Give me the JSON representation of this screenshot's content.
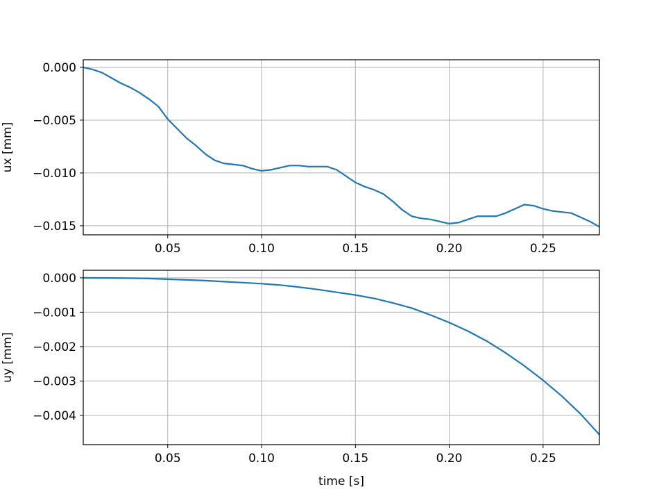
{
  "chart_data": [
    {
      "type": "line",
      "ylabel": "ux [mm]",
      "color": "#1f77b4",
      "grid": true,
      "x": [
        0.005,
        0.01,
        0.015,
        0.02,
        0.025,
        0.03,
        0.035,
        0.04,
        0.045,
        0.05,
        0.055,
        0.06,
        0.065,
        0.07,
        0.075,
        0.08,
        0.085,
        0.09,
        0.095,
        0.1,
        0.105,
        0.11,
        0.115,
        0.12,
        0.125,
        0.13,
        0.135,
        0.14,
        0.145,
        0.15,
        0.155,
        0.16,
        0.165,
        0.17,
        0.175,
        0.18,
        0.185,
        0.19,
        0.195,
        0.2,
        0.205,
        0.21,
        0.215,
        0.22,
        0.225,
        0.23,
        0.235,
        0.24,
        0.245,
        0.25,
        0.255,
        0.26,
        0.265,
        0.27,
        0.275,
        0.28
      ],
      "values": [
        0,
        -0.0002,
        -0.0005,
        -0.001,
        -0.0015,
        -0.0019,
        -0.0024,
        -0.003,
        -0.0037,
        -0.0049,
        -0.0058,
        -0.0067,
        -0.0074,
        -0.0082,
        -0.0088,
        -0.0091,
        -0.0092,
        -0.0093,
        -0.0096,
        -0.0098,
        -0.0097,
        -0.0095,
        -0.0093,
        -0.0093,
        -0.0094,
        -0.0094,
        -0.0094,
        -0.0097,
        -0.0103,
        -0.0109,
        -0.0113,
        -0.0116,
        -0.012,
        -0.0127,
        -0.0135,
        -0.0141,
        -0.0143,
        -0.0144,
        -0.0146,
        -0.0148,
        -0.0147,
        -0.0144,
        -0.0141,
        -0.0141,
        -0.0141,
        -0.0138,
        -0.0134,
        -0.013,
        -0.0131,
        -0.0134,
        -0.0136,
        -0.0137,
        -0.0138,
        -0.0142,
        -0.0146,
        -0.0151
      ],
      "xlim": [
        0.005,
        0.28
      ],
      "xticks": [
        {
          "value": 0.05,
          "label": "0.05"
        },
        {
          "value": 0.1,
          "label": "0.10"
        },
        {
          "value": 0.15,
          "label": "0.15"
        },
        {
          "value": 0.2,
          "label": "0.20"
        },
        {
          "value": 0.25,
          "label": "0.25"
        }
      ],
      "ylim": [
        -0.01586,
        0.00072
      ],
      "yticks": [
        {
          "value": 0,
          "label": "0.000"
        },
        {
          "value": -0.005,
          "label": "−0.005"
        },
        {
          "value": -0.01,
          "label": "−0.010"
        },
        {
          "value": -0.015,
          "label": "−0.015"
        }
      ]
    },
    {
      "type": "line",
      "ylabel": "uy [mm]",
      "xlabel": "time [s]",
      "color": "#1f77b4",
      "grid": true,
      "x": [
        0.005,
        0.01,
        0.02,
        0.03,
        0.04,
        0.05,
        0.06,
        0.07,
        0.08,
        0.09,
        0.1,
        0.11,
        0.12,
        0.13,
        0.14,
        0.15,
        0.16,
        0.17,
        0.18,
        0.19,
        0.2,
        0.21,
        0.22,
        0.23,
        0.24,
        0.25,
        0.26,
        0.27,
        0.28
      ],
      "values": [
        0,
        -2e-06,
        -5e-06,
        -1e-05,
        -2e-05,
        -4e-05,
        -6e-05,
        -8e-05,
        -0.00011,
        -0.00014,
        -0.00017,
        -0.00021,
        -0.00027,
        -0.00034,
        -0.00042,
        -0.0005,
        -0.0006,
        -0.00073,
        -0.00088,
        -0.00108,
        -0.0013,
        -0.00155,
        -0.00184,
        -0.00218,
        -0.00256,
        -0.00298,
        -0.00344,
        -0.00396,
        -0.00456
      ],
      "xlim": [
        0.005,
        0.28
      ],
      "xticks": [
        {
          "value": 0.05,
          "label": "0.05"
        },
        {
          "value": 0.1,
          "label": "0.10"
        },
        {
          "value": 0.15,
          "label": "0.15"
        },
        {
          "value": 0.2,
          "label": "0.20"
        },
        {
          "value": 0.25,
          "label": "0.25"
        }
      ],
      "ylim": [
        -0.00485,
        0.00022
      ],
      "yticks": [
        {
          "value": 0,
          "label": "0.000"
        },
        {
          "value": -0.001,
          "label": "−0.001"
        },
        {
          "value": -0.002,
          "label": "−0.002"
        },
        {
          "value": -0.003,
          "label": "−0.003"
        },
        {
          "value": -0.004,
          "label": "−0.004"
        }
      ]
    }
  ]
}
